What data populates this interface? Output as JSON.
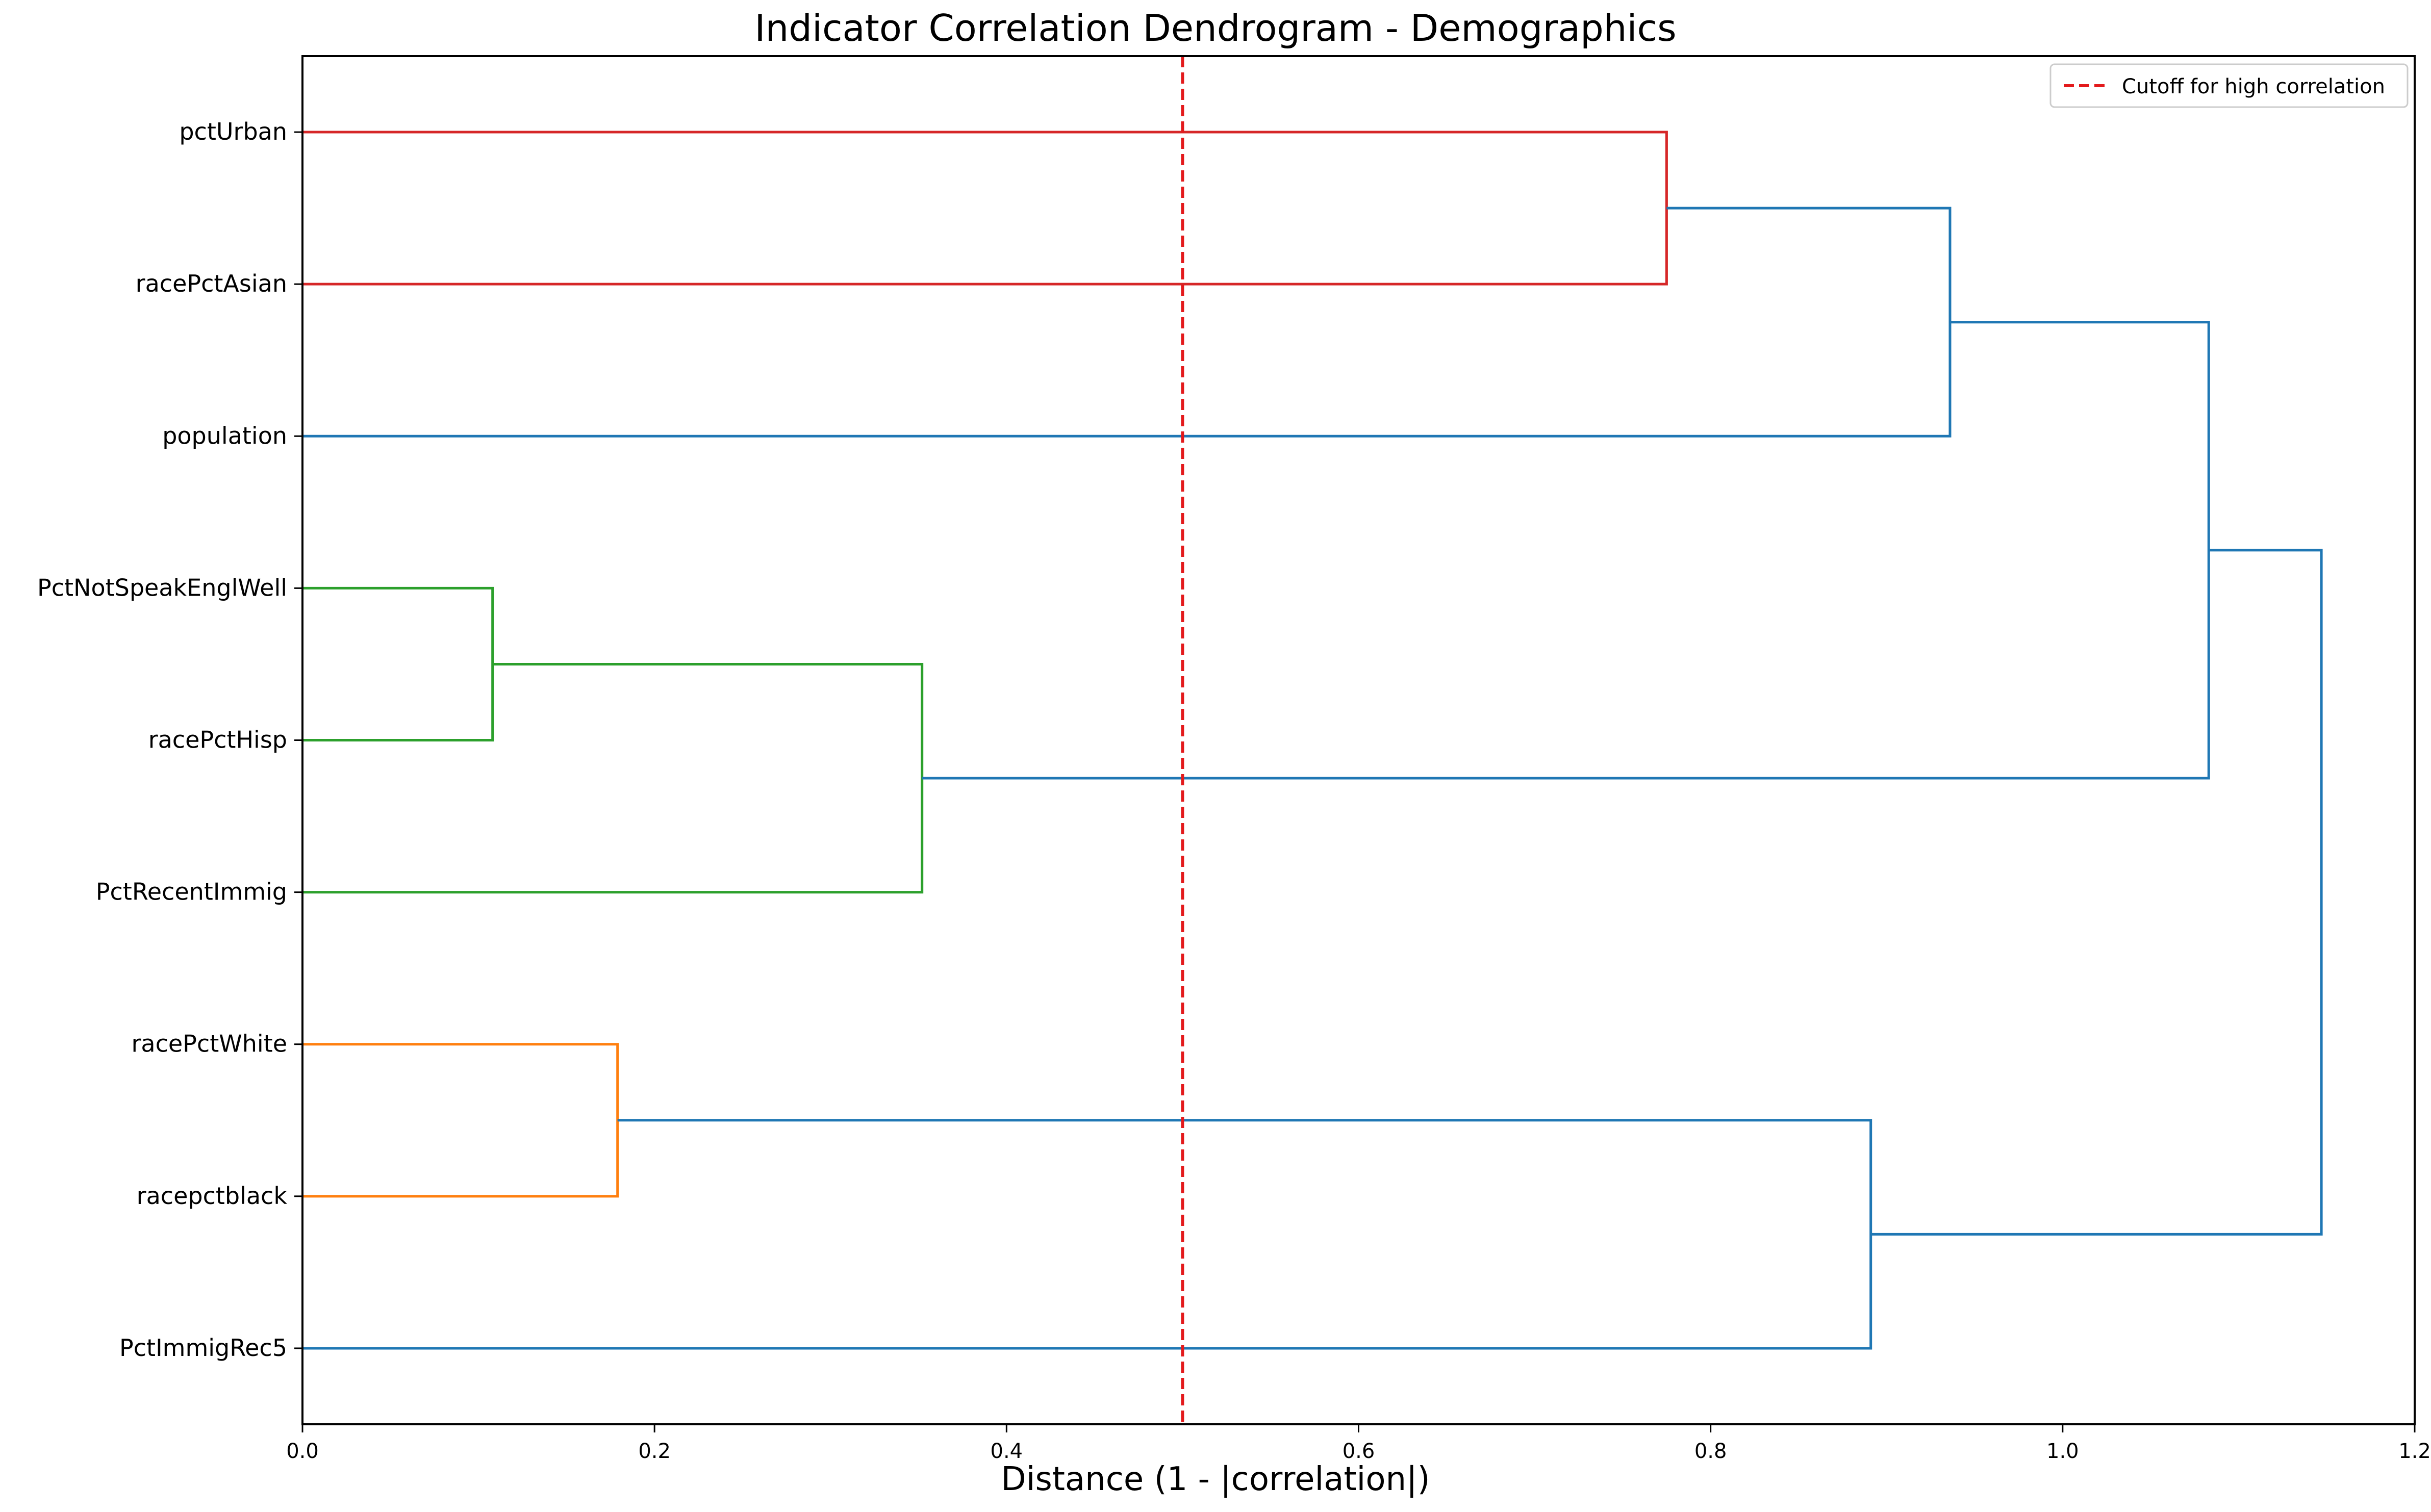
{
  "chart_data": {
    "type": "dendrogram",
    "orientation": "horizontal",
    "title": "Indicator Correlation Dendrogram - Demographics",
    "xlabel": "Distance (1 - |correlation|)",
    "ylabel": "",
    "xlim": [
      0.0,
      1.2
    ],
    "xticks": [
      "0.0",
      "0.2",
      "0.4",
      "0.6",
      "0.8",
      "1.0",
      "1.2"
    ],
    "grid": false,
    "legend": {
      "position": "top-right",
      "entries": [
        {
          "label": "Cutoff for high correlation",
          "color": "#e31a1c",
          "style": "dashed"
        }
      ]
    },
    "cutoff": 0.5,
    "leaves": [
      "pctUrban",
      "racePctAsian",
      "population",
      "PctNotSpeakEnglWell",
      "racePctHisp",
      "PctRecentImmig",
      "racePctWhite",
      "racepctblack",
      "PctImmigRec5"
    ],
    "colors": {
      "red": "#d62728",
      "green": "#2ca02c",
      "orange": "#ff7f0e",
      "blue": "#1f77b4"
    },
    "merges": [
      {
        "left": "pctUrban",
        "right": "racePctAsian",
        "height": 0.775,
        "color": "red"
      },
      {
        "left": "cluster(pctUrban,racePctAsian)",
        "right": "population",
        "height": 0.936,
        "color": "blue"
      },
      {
        "left": "PctNotSpeakEnglWell",
        "right": "racePctHisp",
        "height": 0.108,
        "color": "green"
      },
      {
        "left": "cluster(PctNotSpeakEnglWell,racePctHisp)",
        "right": "PctRecentImmig",
        "height": 0.352,
        "color": "green"
      },
      {
        "left": "racePctWhite",
        "right": "racepctblack",
        "height": 0.179,
        "color": "orange"
      },
      {
        "left": "cluster(racePctWhite,racepctblack)",
        "right": "PctImmigRec5",
        "height": 0.891,
        "color": "blue"
      },
      {
        "left": "cluster(pctUrban,racePctAsian,population)",
        "right": "cluster(PctNotSpeakEnglWell,racePctHisp,PctRecentImmig)",
        "height": 1.083,
        "color": "blue"
      },
      {
        "left": "cluster(top six)",
        "right": "cluster(racePctWhite,racepctblack,PctImmigRec5)",
        "height": 1.147,
        "color": "blue"
      }
    ]
  }
}
